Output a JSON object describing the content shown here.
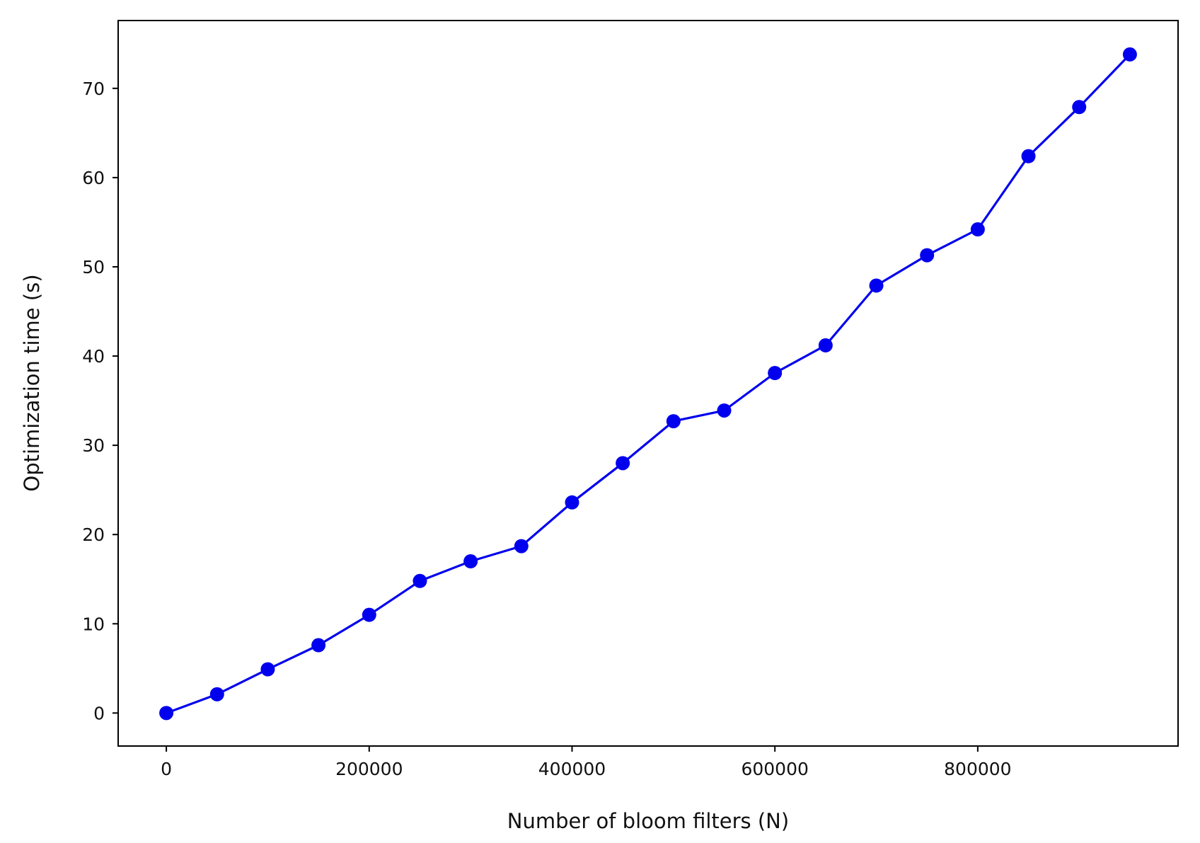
{
  "chart_data": {
    "type": "line",
    "title": "",
    "xlabel": "Number of bloom filters (N)",
    "ylabel": "Optimization time (s)",
    "xlim": [
      -47500,
      997500
    ],
    "ylim": [
      -3.7,
      77.6
    ],
    "xticks": [
      0,
      200000,
      400000,
      600000,
      800000
    ],
    "xtick_labels": [
      "0",
      "200000",
      "400000",
      "600000",
      "800000"
    ],
    "yticks": [
      0,
      10,
      20,
      30,
      40,
      50,
      60,
      70
    ],
    "ytick_labels": [
      "0",
      "10",
      "20",
      "30",
      "40",
      "50",
      "60",
      "70"
    ],
    "grid": false,
    "legend": false,
    "series": [
      {
        "color": "#0000ee",
        "marker": "circle",
        "x": [
          0,
          50000,
          100000,
          150000,
          200000,
          250000,
          300000,
          350000,
          400000,
          450000,
          500000,
          550000,
          600000,
          650000,
          700000,
          750000,
          800000,
          850000,
          900000,
          950000
        ],
        "y": [
          0.0,
          2.1,
          4.9,
          7.6,
          11.0,
          14.8,
          17.0,
          18.7,
          23.6,
          28.0,
          32.7,
          33.9,
          38.1,
          41.2,
          47.9,
          51.3,
          54.2,
          62.4,
          67.9,
          73.8
        ]
      }
    ]
  }
}
